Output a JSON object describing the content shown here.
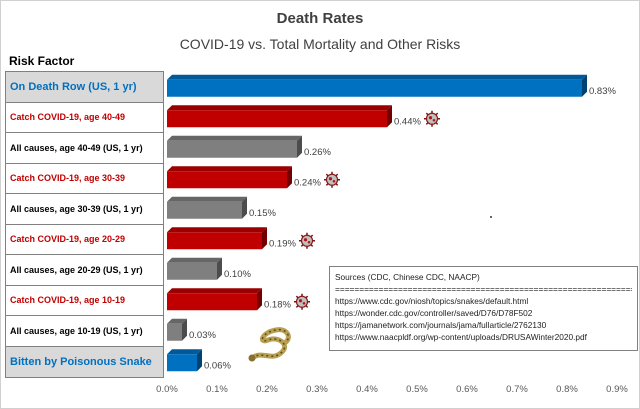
{
  "chart_data": {
    "type": "bar",
    "orientation": "horizontal",
    "title": "Death Rates",
    "subtitle": "COVID-19 vs. Total Mortality and Other Risks",
    "category_axis_title": "Risk Factor",
    "categories": [
      "On Death Row (US, 1 yr)",
      "Catch COVID-19, age 40-49",
      "All causes, age 40-49 (US, 1 yr)",
      "Catch COVID-19, age 30-39",
      "All causes, age 30-39 (US, 1 yr)",
      "Catch COVID-19, age 20-29",
      "All causes, age 20-29 (US, 1 yr)",
      "Catch COVID-19, age 10-19",
      "All causes, age 10-19 (US, 1 yr)",
      "Bitten by Poisonous Snake"
    ],
    "values": [
      0.83,
      0.44,
      0.26,
      0.24,
      0.15,
      0.19,
      0.1,
      0.18,
      0.03,
      0.06
    ],
    "value_labels": [
      "0.83%",
      "0.44%",
      "0.26%",
      "0.24%",
      "0.15%",
      "0.19%",
      "0.10%",
      "0.18%",
      "0.03%",
      "0.06%"
    ],
    "kinds": [
      "blue",
      "red",
      "grey",
      "red",
      "grey",
      "red",
      "grey",
      "red",
      "grey",
      "blue"
    ],
    "colors": {
      "blue": "#0070c0",
      "red": "#c00000",
      "grey": "#7f7f7f",
      "label_blue": "#0070c0",
      "label_red": "#c00000"
    },
    "xlim": [
      0,
      0.9
    ],
    "ticks": [
      0,
      0.1,
      0.2,
      0.3,
      0.4,
      0.5,
      0.6,
      0.7,
      0.8,
      0.9
    ],
    "tick_labels": [
      "0.0%",
      "0.1%",
      "0.2%",
      "0.3%",
      "0.4%",
      "0.5%",
      "0.6%",
      "0.7%",
      "0.8%",
      "0.9%"
    ],
    "grid": false
  },
  "sources": {
    "title": "Sources (CDC, Chinese CDC, NAACP)",
    "separator": "=========================================================================",
    "lines": [
      "https://www.cdc.gov/niosh/topics/snakes/default.html",
      "https://wonder.cdc.gov/controller/saved/D76/D78F502",
      "https://jamanetwork.com/journals/jama/fullarticle/2762130",
      "https://www.naacpldf.org/wp-content/uploads/DRUSAWinter2020.pdf"
    ]
  }
}
